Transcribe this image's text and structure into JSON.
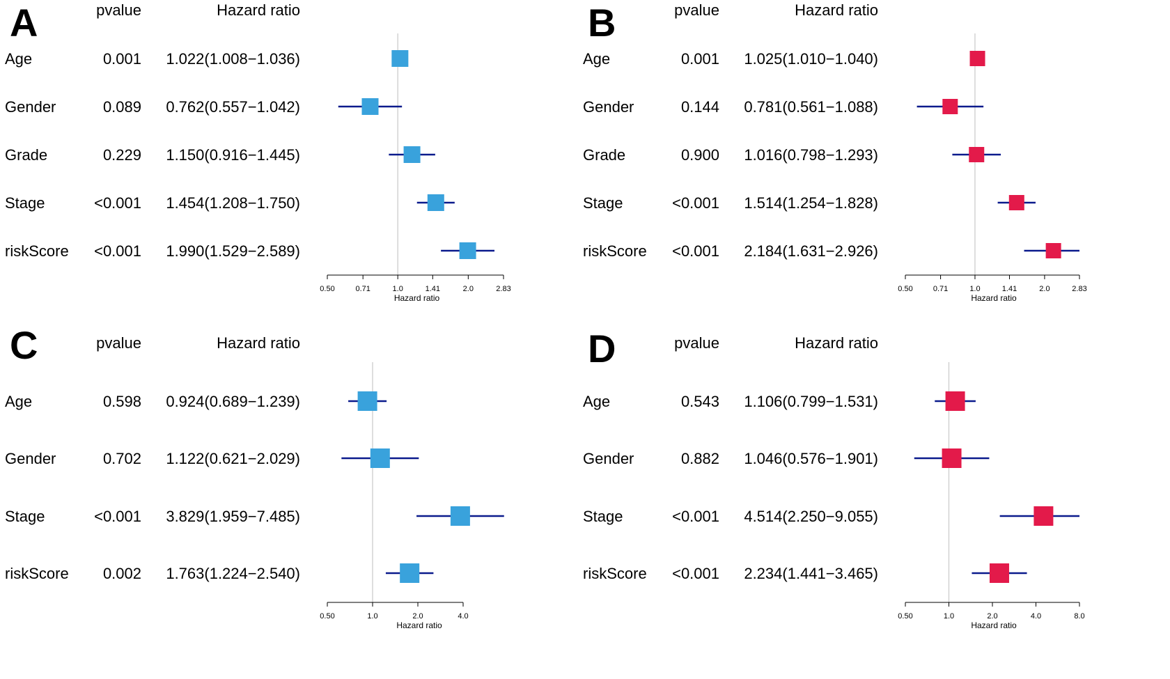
{
  "chart_data": [
    {
      "type": "forest",
      "panel": "A",
      "col_headers": {
        "pvalue": "pvalue",
        "hr": "Hazard ratio"
      },
      "xlabel": "Hazard ratio",
      "xscale": "log2",
      "xlim": [
        0.5,
        2.83
      ],
      "ticks": [
        0.5,
        0.71,
        1.0,
        1.41,
        2.0,
        2.83
      ],
      "tick_labels": [
        "0.50",
        "0.71",
        "1.0",
        "1.41",
        "2.0",
        "2.83"
      ],
      "reference_line": 1.0,
      "color": "#39a2dc",
      "ci_color": "#0a1a8c",
      "rows": [
        {
          "label": "Age",
          "pvalue": "0.001",
          "hr_text": "1.022(1.008−1.036)",
          "hr": 1.022,
          "low": 1.008,
          "high": 1.036
        },
        {
          "label": "Gender",
          "pvalue": "0.089",
          "hr_text": "0.762(0.557−1.042)",
          "hr": 0.762,
          "low": 0.557,
          "high": 1.042
        },
        {
          "label": "Grade",
          "pvalue": "0.229",
          "hr_text": "1.150(0.916−1.445)",
          "hr": 1.15,
          "low": 0.916,
          "high": 1.445
        },
        {
          "label": "Stage",
          "pvalue": "<0.001",
          "hr_text": "1.454(1.208−1.750)",
          "hr": 1.454,
          "low": 1.208,
          "high": 1.75
        },
        {
          "label": "riskScore",
          "pvalue": "<0.001",
          "hr_text": "1.990(1.529−2.589)",
          "hr": 1.99,
          "low": 1.529,
          "high": 2.589
        }
      ]
    },
    {
      "type": "forest",
      "panel": "B",
      "col_headers": {
        "pvalue": "pvalue",
        "hr": "Hazard ratio"
      },
      "xlabel": "Hazard ratio",
      "xscale": "log2",
      "xlim": [
        0.5,
        2.83
      ],
      "ticks": [
        0.5,
        0.71,
        1.0,
        1.41,
        2.0,
        2.83
      ],
      "tick_labels": [
        "0.50",
        "0.71",
        "1.0",
        "1.41",
        "2.0",
        "2.83"
      ],
      "reference_line": 1.0,
      "color": "#e31a4a",
      "ci_color": "#0a1a8c",
      "rows": [
        {
          "label": "Age",
          "pvalue": "0.001",
          "hr_text": "1.025(1.010−1.040)",
          "hr": 1.025,
          "low": 1.01,
          "high": 1.04
        },
        {
          "label": "Gender",
          "pvalue": "0.144",
          "hr_text": "0.781(0.561−1.088)",
          "hr": 0.781,
          "low": 0.561,
          "high": 1.088
        },
        {
          "label": "Grade",
          "pvalue": "0.900",
          "hr_text": "1.016(0.798−1.293)",
          "hr": 1.016,
          "low": 0.798,
          "high": 1.293
        },
        {
          "label": "Stage",
          "pvalue": "<0.001",
          "hr_text": "1.514(1.254−1.828)",
          "hr": 1.514,
          "low": 1.254,
          "high": 1.828
        },
        {
          "label": "riskScore",
          "pvalue": "<0.001",
          "hr_text": "2.184(1.631−2.926)",
          "hr": 2.184,
          "low": 1.631,
          "high": 2.926
        }
      ]
    },
    {
      "type": "forest",
      "panel": "C",
      "col_headers": {
        "pvalue": "pvalue",
        "hr": "Hazard ratio"
      },
      "xlabel": "Hazard ratio",
      "xscale": "log2",
      "xlim": [
        0.5,
        8.0
      ],
      "ticks": [
        0.5,
        1.0,
        2.0,
        4.0
      ],
      "tick_labels": [
        "0.50",
        "1.0",
        "2.0",
        "4.0"
      ],
      "reference_line": 1.0,
      "color": "#39a2dc",
      "ci_color": "#0a1a8c",
      "rows": [
        {
          "label": "Age",
          "pvalue": "0.598",
          "hr_text": "0.924(0.689−1.239)",
          "hr": 0.924,
          "low": 0.689,
          "high": 1.239
        },
        {
          "label": "Gender",
          "pvalue": "0.702",
          "hr_text": "1.122(0.621−2.029)",
          "hr": 1.122,
          "low": 0.621,
          "high": 2.029
        },
        {
          "label": "Stage",
          "pvalue": "<0.001",
          "hr_text": "3.829(1.959−7.485)",
          "hr": 3.829,
          "low": 1.959,
          "high": 7.485
        },
        {
          "label": "riskScore",
          "pvalue": "0.002",
          "hr_text": "1.763(1.224−2.540)",
          "hr": 1.763,
          "low": 1.224,
          "high": 2.54
        }
      ]
    },
    {
      "type": "forest",
      "panel": "D",
      "col_headers": {
        "pvalue": "pvalue",
        "hr": "Hazard ratio"
      },
      "xlabel": "Hazard ratio",
      "xscale": "log2",
      "xlim": [
        0.5,
        8.0
      ],
      "ticks": [
        0.5,
        1.0,
        2.0,
        4.0,
        8.0
      ],
      "tick_labels": [
        "0.50",
        "1.0",
        "2.0",
        "4.0",
        "8.0"
      ],
      "reference_line": 1.0,
      "color": "#e31a4a",
      "ci_color": "#0a1a8c",
      "rows": [
        {
          "label": "Age",
          "pvalue": "0.543",
          "hr_text": "1.106(0.799−1.531)",
          "hr": 1.106,
          "low": 0.799,
          "high": 1.531
        },
        {
          "label": "Gender",
          "pvalue": "0.882",
          "hr_text": "1.046(0.576−1.901)",
          "hr": 1.046,
          "low": 0.576,
          "high": 1.901
        },
        {
          "label": "Stage",
          "pvalue": "<0.001",
          "hr_text": "4.514(2.250−9.055)",
          "hr": 4.514,
          "low": 2.25,
          "high": 9.055
        },
        {
          "label": "riskScore",
          "pvalue": "<0.001",
          "hr_text": "2.234(1.441−3.465)",
          "hr": 2.234,
          "low": 1.441,
          "high": 3.465
        }
      ]
    }
  ]
}
